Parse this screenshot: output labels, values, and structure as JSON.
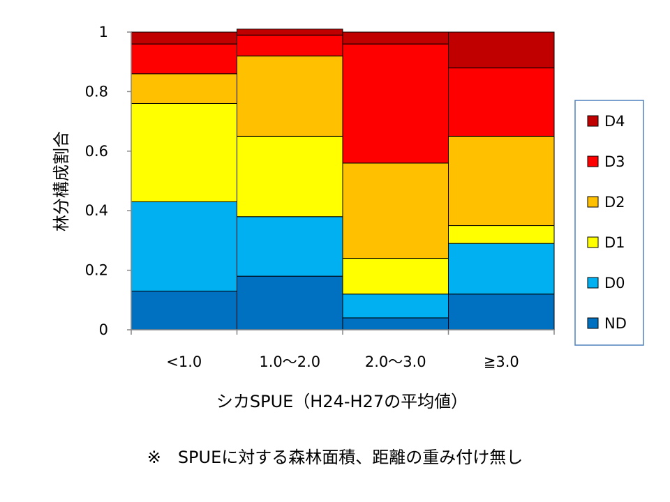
{
  "chart_data": {
    "type": "bar",
    "stacked": true,
    "categories": [
      "<1.0",
      "1.0～2.0",
      "2.0～3.0",
      "≧3.0"
    ],
    "series": [
      {
        "name": "ND",
        "color": "#0070c0",
        "values": [
          0.13,
          0.18,
          0.04,
          0.12
        ]
      },
      {
        "name": "D0",
        "color": "#00b0f0",
        "values": [
          0.3,
          0.2,
          0.08,
          0.17
        ]
      },
      {
        "name": "D1",
        "color": "#ffff00",
        "values": [
          0.33,
          0.27,
          0.12,
          0.06
        ]
      },
      {
        "name": "D2",
        "color": "#ffc000",
        "values": [
          0.1,
          0.27,
          0.32,
          0.3
        ]
      },
      {
        "name": "D3",
        "color": "#ff0000",
        "values": [
          0.1,
          0.07,
          0.4,
          0.23
        ]
      },
      {
        "name": "D4",
        "color": "#c00000",
        "values": [
          0.04,
          0.02,
          0.04,
          0.12
        ]
      }
    ],
    "yticks": [
      "0",
      "0.2",
      "0.4",
      "0.6",
      "0.8",
      "1"
    ],
    "ylim": [
      0,
      1
    ],
    "xlabel": "シカSPUE（H24-H27の平均値）",
    "ylabel": "林分構成割合",
    "legend_position": "right",
    "grid": false
  },
  "footnote": "※　SPUEに対する森林面積、距離の重み付け無し"
}
